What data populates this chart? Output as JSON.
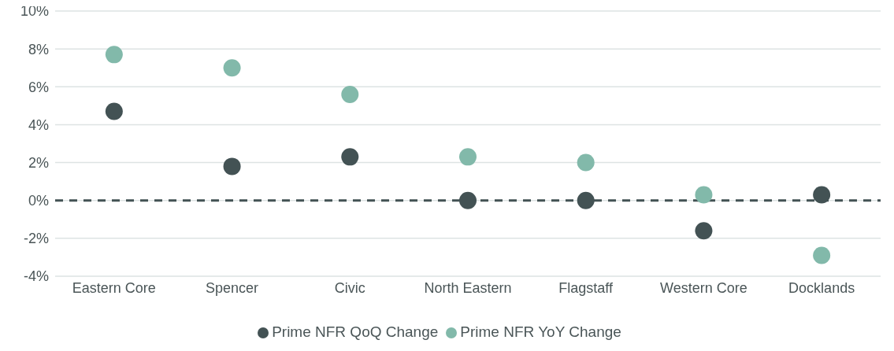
{
  "chart_data": {
    "type": "scatter",
    "categories": [
      "Eastern Core",
      "Spencer",
      "Civic",
      "North Eastern",
      "Flagstaff",
      "Western Core",
      "Docklands"
    ],
    "series": [
      {
        "name": "Prime NFR QoQ Change",
        "color": "#435254",
        "values": [
          4.7,
          1.8,
          2.3,
          0,
          0,
          -1.6,
          0.3
        ]
      },
      {
        "name": "Prime NFR YoY Change",
        "color": "#82b9aa",
        "values": [
          7.7,
          7.0,
          5.6,
          2.3,
          2.0,
          0.3,
          -2.9
        ]
      }
    ],
    "ylim": [
      -4,
      10
    ],
    "yticks": [
      {
        "value": -4,
        "label": "-4%"
      },
      {
        "value": -2,
        "label": "-2%"
      },
      {
        "value": 0,
        "label": "0%"
      },
      {
        "value": 2,
        "label": "2%"
      },
      {
        "value": 4,
        "label": "4%"
      },
      {
        "value": 6,
        "label": "6%"
      },
      {
        "value": 8,
        "label": "8%"
      },
      {
        "value": 10,
        "label": "10%"
      }
    ],
    "grid": "y",
    "legend": "bottom",
    "marker": "circle",
    "ref_lines": [
      {
        "axis": "y",
        "value": 0,
        "color": "#435254",
        "line_style": "dashed"
      }
    ]
  }
}
